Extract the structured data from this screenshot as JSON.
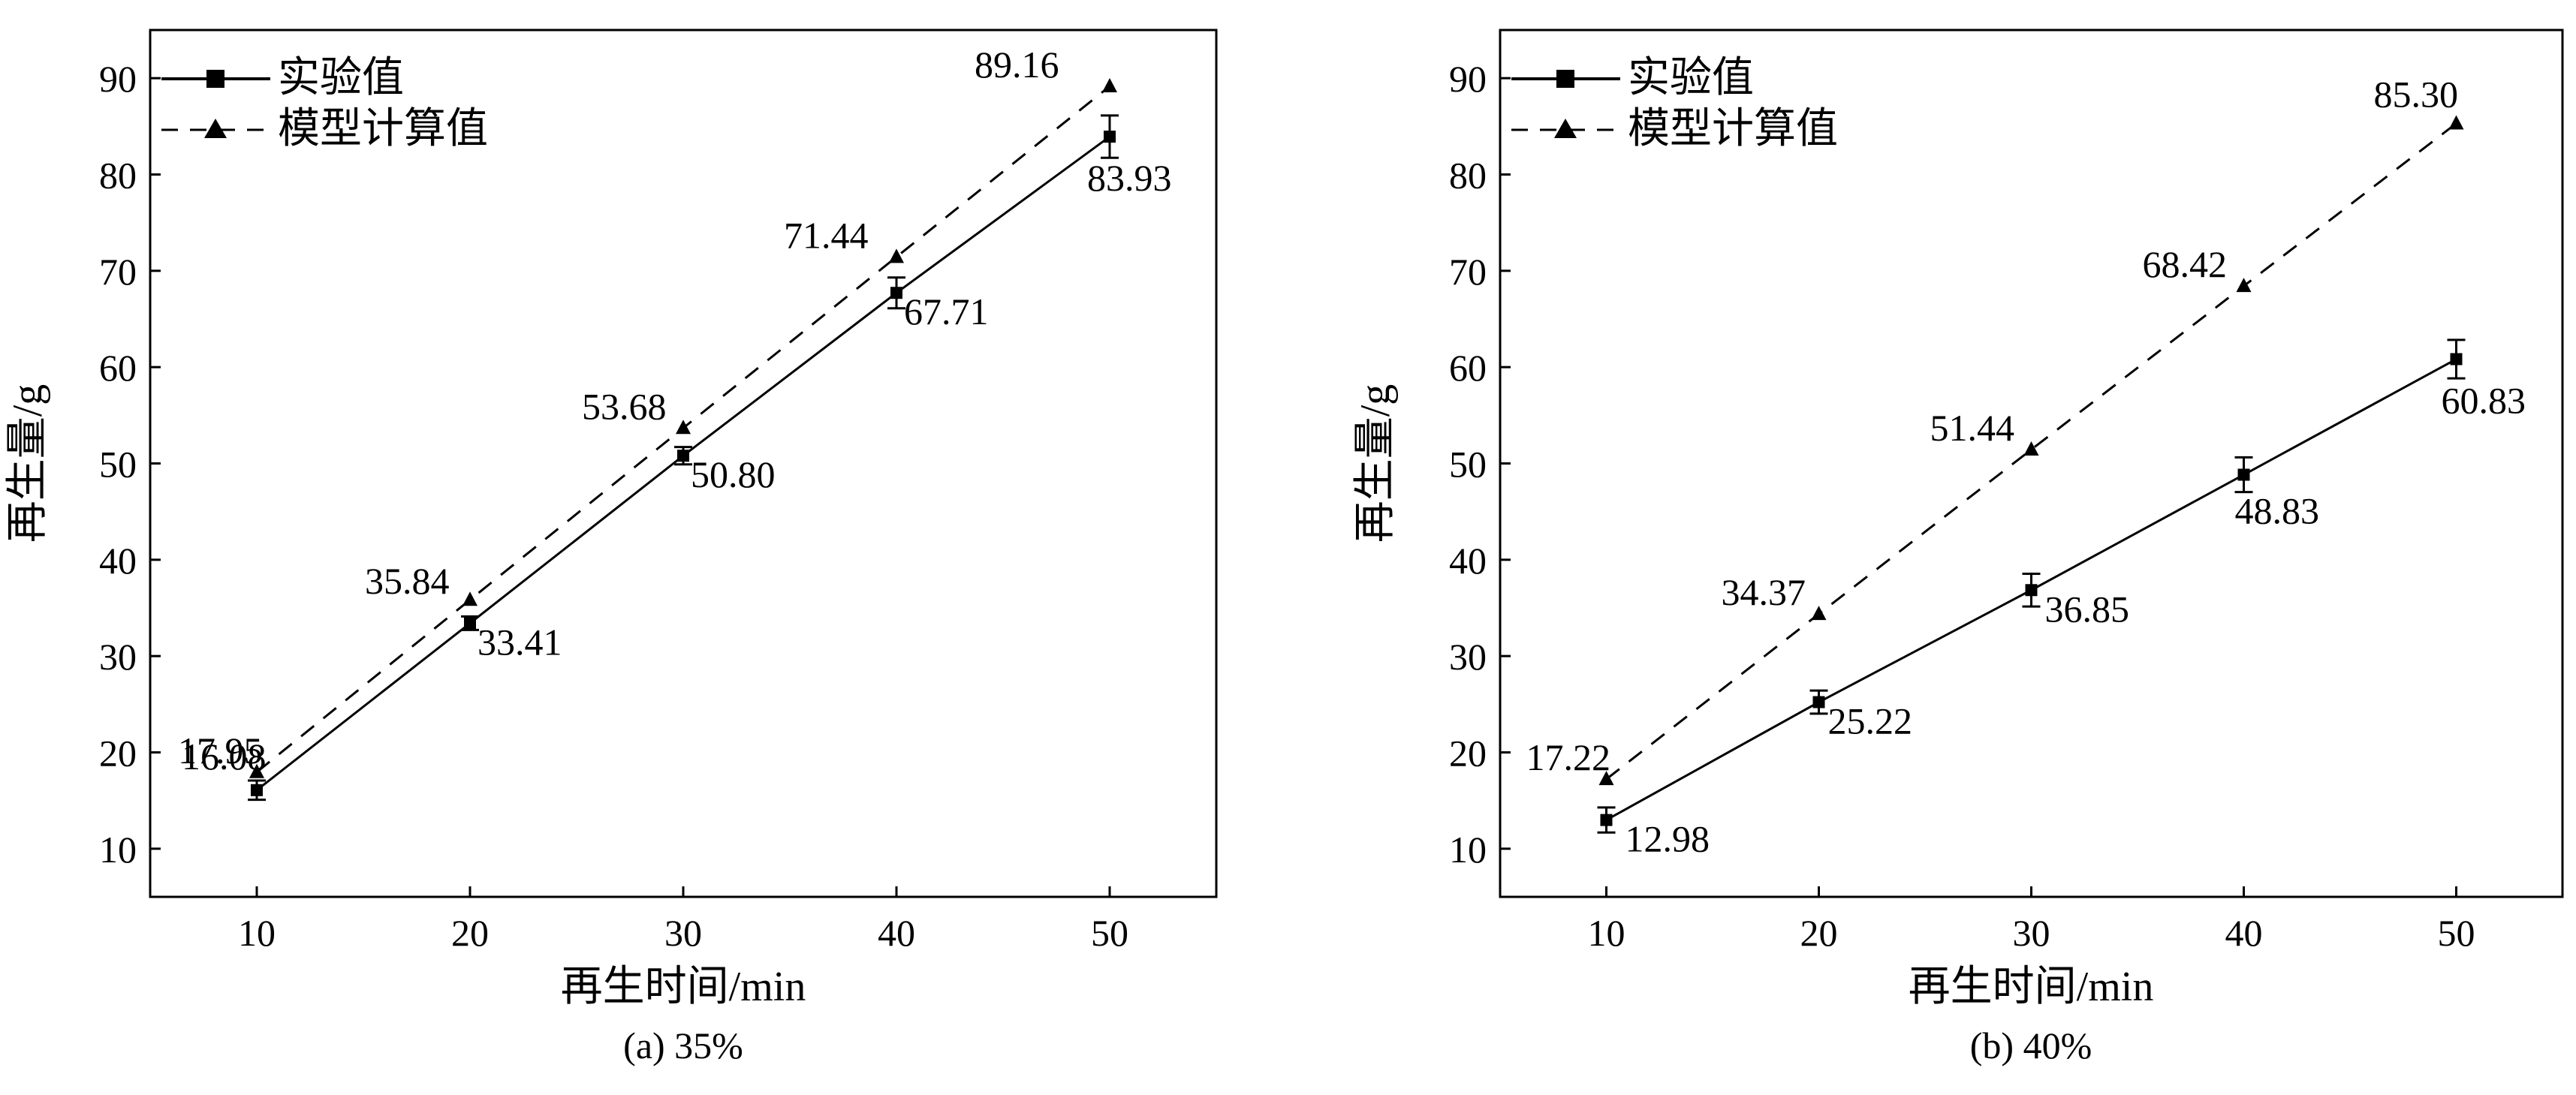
{
  "chart_data": [
    {
      "type": "line",
      "caption": "(a) 35%",
      "xlabel": "再生时间/min",
      "ylabel": "再生量/g",
      "x": [
        10,
        20,
        30,
        40,
        50
      ],
      "xticks": [
        "10",
        "20",
        "30",
        "40",
        "50"
      ],
      "xlim": [
        5,
        55
      ],
      "yticks": [
        "10",
        "20",
        "30",
        "40",
        "50",
        "60",
        "70",
        "80",
        "90"
      ],
      "ylim": [
        5,
        95
      ],
      "legend_position": "top-left",
      "series": [
        {
          "name": "实验值",
          "style": "solid-square",
          "values": [
            16.08,
            33.41,
            50.8,
            67.71,
            83.93
          ],
          "labels": [
            "16.08",
            "33.41",
            "50.80",
            "67.71",
            "83.93"
          ],
          "error": [
            1.0,
            0.7,
            0.9,
            1.6,
            2.2
          ]
        },
        {
          "name": "模型计算值",
          "style": "dashed-triangle",
          "values": [
            17.95,
            35.84,
            53.68,
            71.44,
            89.16
          ],
          "labels": [
            "17.95",
            "35.84",
            "53.68",
            "71.44",
            "89.16"
          ]
        }
      ]
    },
    {
      "type": "line",
      "caption": "(b) 40%",
      "xlabel": "再生时间/min",
      "ylabel": "再生量/g",
      "x": [
        10,
        20,
        30,
        40,
        50
      ],
      "xticks": [
        "10",
        "20",
        "30",
        "40",
        "50"
      ],
      "xlim": [
        5,
        55
      ],
      "yticks": [
        "10",
        "20",
        "30",
        "40",
        "50",
        "60",
        "70",
        "80",
        "90"
      ],
      "ylim": [
        5,
        95
      ],
      "legend_position": "top-left",
      "series": [
        {
          "name": "实验值",
          "style": "solid-square",
          "values": [
            12.98,
            25.22,
            36.85,
            48.83,
            60.83
          ],
          "labels": [
            "12.98",
            "25.22",
            "36.85",
            "48.83",
            "60.83"
          ],
          "error": [
            1.3,
            1.2,
            1.7,
            1.8,
            2.0
          ]
        },
        {
          "name": "模型计算值",
          "style": "dashed-triangle",
          "values": [
            17.22,
            34.37,
            51.44,
            68.42,
            85.3
          ],
          "labels": [
            "17.22",
            "34.37",
            "51.44",
            "68.42",
            "85.30"
          ]
        }
      ]
    }
  ]
}
